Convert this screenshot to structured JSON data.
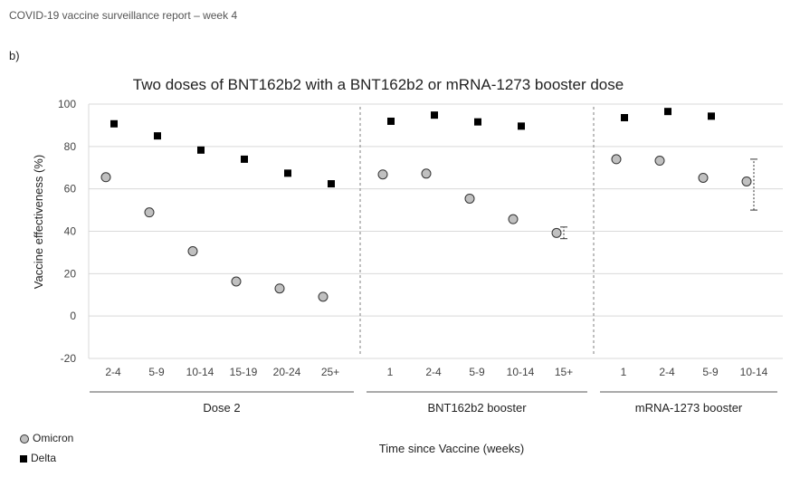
{
  "report_header": "COVID-19 vaccine surveillance report – week 4",
  "panel_label": "b)",
  "chart_data": {
    "type": "scatter",
    "title": "Two doses of BNT162b2 with a BNT162b2 or mRNA-1273 booster dose",
    "xlabel": "Time since Vaccine (weeks)",
    "ylabel": "Vaccine effectiveness (%)",
    "ylim": [
      -20,
      100
    ],
    "yticks": [
      -20,
      0,
      20,
      40,
      60,
      80,
      100
    ],
    "grid": true,
    "groups": [
      {
        "name": "Dose 2",
        "categories": [
          "2-4",
          "5-9",
          "10-14",
          "15-19",
          "20-24",
          "25+"
        ]
      },
      {
        "name": "BNT162b2 booster",
        "categories": [
          "1",
          "2-4",
          "5-9",
          "10-14",
          "15+"
        ]
      },
      {
        "name": "mRNA-1273 booster",
        "categories": [
          "1",
          "2-4",
          "5-9",
          "10-14"
        ]
      }
    ],
    "series": [
      {
        "name": "Omicron",
        "marker": "circle",
        "color": "#c0c0c0",
        "values": [
          65.5,
          48.9,
          30.6,
          16.3,
          13.0,
          9.1,
          66.8,
          67.2,
          55.4,
          45.7,
          39.2,
          74.0,
          73.3,
          65.2,
          63.5
        ],
        "error_bars": [
          null,
          null,
          null,
          null,
          null,
          null,
          null,
          null,
          null,
          null,
          [
            36.5,
            42.0
          ],
          null,
          null,
          null,
          [
            50.0,
            74.0
          ]
        ]
      },
      {
        "name": "Delta",
        "marker": "square",
        "color": "#000000",
        "values": [
          90.7,
          85.0,
          78.3,
          74.0,
          67.4,
          62.4,
          91.9,
          94.8,
          91.6,
          89.6,
          null,
          93.6,
          96.5,
          94.3,
          null
        ],
        "error_bars": []
      }
    ],
    "legend_position": "bottom-left",
    "legend": [
      "Omicron",
      "Delta"
    ],
    "colors": {
      "grid": "#d9d9d9",
      "separator": "#7f7f7f",
      "omicron_fill": "#c0c0c0",
      "delta_fill": "#000000"
    }
  }
}
